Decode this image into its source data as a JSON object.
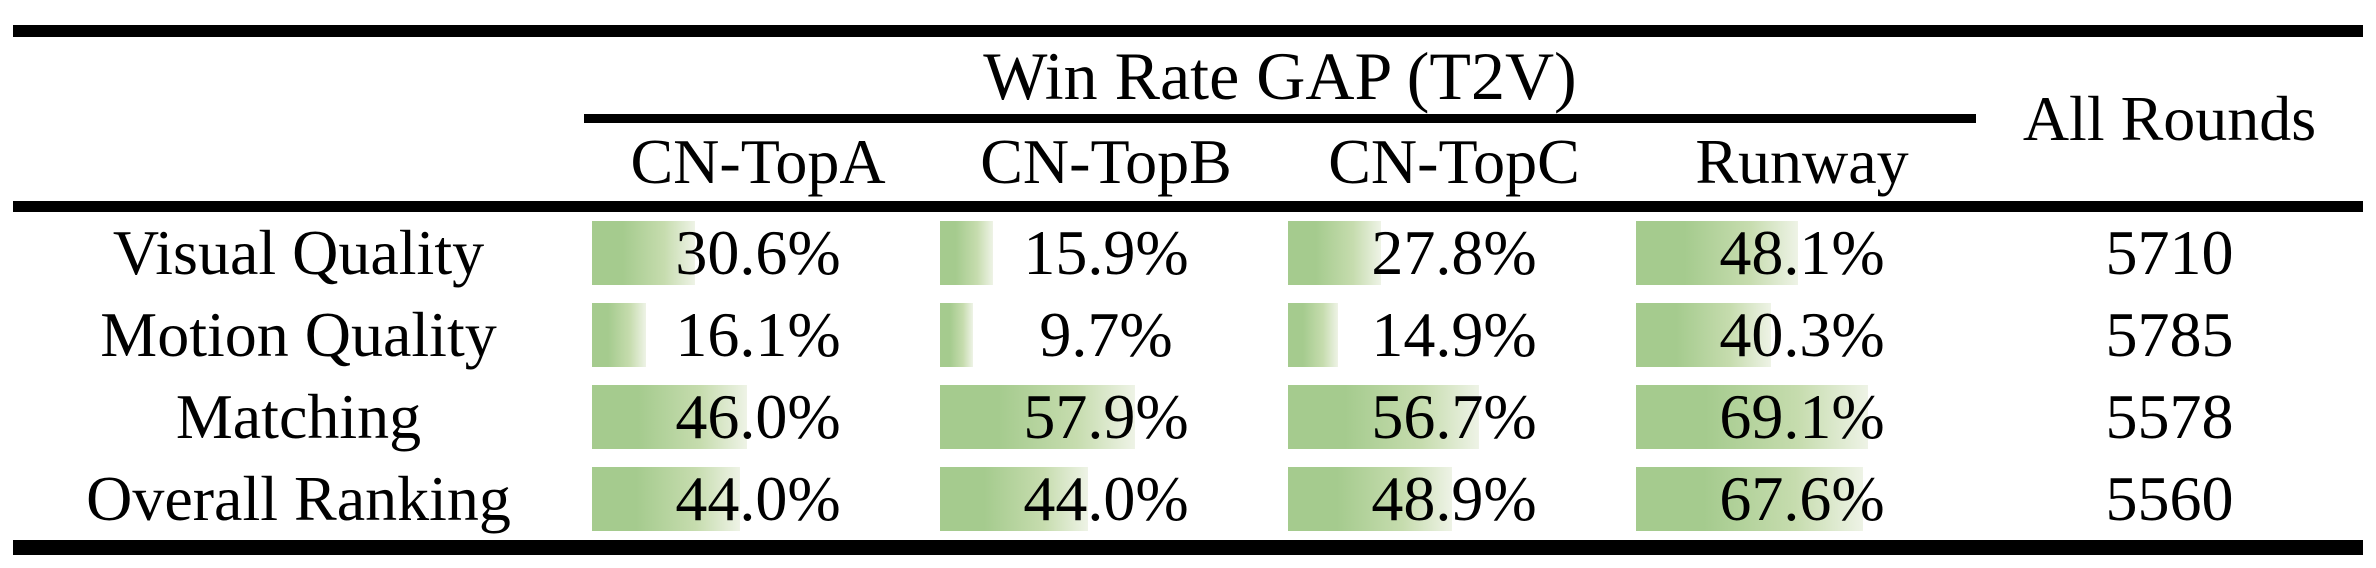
{
  "table": {
    "title": "Win Rate GAP (T2V)",
    "all_rounds_header": "All Rounds",
    "columns": [
      "CN-TopA",
      "CN-TopB",
      "CN-TopC",
      "Runway"
    ],
    "rows": [
      {
        "label": "Visual Quality",
        "values": [
          30.6,
          15.9,
          27.8,
          48.1
        ],
        "display": [
          "30.6%",
          "15.9%",
          "27.8%",
          "48.1%"
        ],
        "all_rounds": "5710"
      },
      {
        "label": "Motion Quality",
        "values": [
          16.1,
          9.7,
          14.9,
          40.3
        ],
        "display": [
          "16.1%",
          "9.7%",
          "14.9%",
          "40.3%"
        ],
        "all_rounds": "5785"
      },
      {
        "label": "Matching",
        "values": [
          46.0,
          57.9,
          56.7,
          69.1
        ],
        "display": [
          "46.0%",
          "57.9%",
          "56.7%",
          "69.1%"
        ],
        "all_rounds": "5578"
      },
      {
        "label": "Overall Ranking",
        "values": [
          44.0,
          44.0,
          48.9,
          67.6
        ],
        "display": [
          "44.0%",
          "44.0%",
          "48.9%",
          "67.6%"
        ],
        "all_rounds": "5560"
      }
    ],
    "colors": {
      "bar_gradient_start": "#a5cb8e",
      "bar_gradient_mid": "#c6dcae",
      "bar_gradient_end": "#eef3e6",
      "rule_color": "#000000",
      "text_color": "#000000"
    }
  },
  "chart_data": {
    "type": "table",
    "title": "Win Rate GAP (T2V)",
    "categories": [
      "Visual Quality",
      "Motion Quality",
      "Matching",
      "Overall Ranking"
    ],
    "series": [
      {
        "name": "CN-TopA",
        "values": [
          30.6,
          16.1,
          46.0,
          44.0
        ],
        "unit": "%"
      },
      {
        "name": "CN-TopB",
        "values": [
          15.9,
          9.7,
          57.9,
          44.0
        ],
        "unit": "%"
      },
      {
        "name": "CN-TopC",
        "values": [
          27.8,
          14.9,
          56.7,
          48.9
        ],
        "unit": "%"
      },
      {
        "name": "Runway",
        "values": [
          48.1,
          40.3,
          69.1,
          67.6
        ],
        "unit": "%"
      },
      {
        "name": "All Rounds",
        "values": [
          5710,
          5785,
          5578,
          5560
        ],
        "unit": "count"
      }
    ],
    "layout_hints": {
      "data_bars": true,
      "bar_scale_max_percent": 100,
      "bar_color": "#a5cb8e"
    }
  }
}
